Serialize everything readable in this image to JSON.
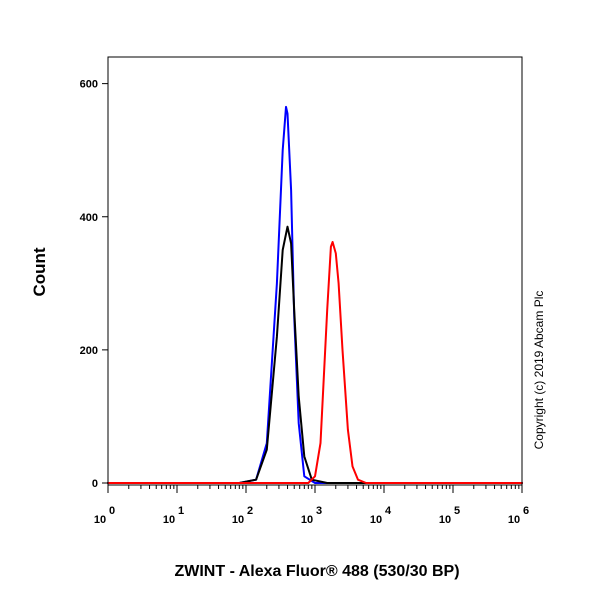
{
  "chart_data": {
    "type": "line",
    "xlabel": "ZWINT - Alexa Fluor® 488 (530/30 BP)",
    "ylabel": "Count",
    "x_scale": "log",
    "xlim": [
      1,
      1000000
    ],
    "ylim": [
      0,
      640
    ],
    "x_ticks": [
      {
        "base": "10",
        "exp": "0",
        "value": 1
      },
      {
        "base": "10",
        "exp": "1",
        "value": 10
      },
      {
        "base": "10",
        "exp": "2",
        "value": 100
      },
      {
        "base": "10",
        "exp": "3",
        "value": 1000
      },
      {
        "base": "10",
        "exp": "4",
        "value": 10000
      },
      {
        "base": "10",
        "exp": "5",
        "value": 100000
      },
      {
        "base": "10",
        "exp": "6",
        "value": 1000000
      }
    ],
    "y_ticks": [
      "0",
      "200",
      "400",
      "600"
    ],
    "y_tick_values": [
      0,
      200,
      400,
      600
    ],
    "grid": false,
    "annotation": "Copyright (c) 2019 Abcam Plc",
    "series": [
      {
        "color": "#0000ff",
        "x": [
          80,
          140,
          200,
          280,
          340,
          380,
          400,
          450,
          500,
          580,
          700,
          1000,
          1500
        ],
        "y": [
          0,
          5,
          60,
          300,
          500,
          565,
          555,
          440,
          250,
          90,
          10,
          0,
          0
        ]
      },
      {
        "color": "#000000",
        "x": [
          80,
          140,
          200,
          280,
          340,
          400,
          450,
          500,
          580,
          700,
          900,
          1500
        ],
        "y": [
          0,
          5,
          50,
          220,
          350,
          385,
          360,
          260,
          130,
          40,
          5,
          0
        ]
      },
      {
        "color": "#ff0000",
        "x": [
          800,
          1000,
          1200,
          1500,
          1700,
          1800,
          2000,
          2200,
          2500,
          3000,
          3500,
          4200,
          5500,
          8000
        ],
        "y": [
          0,
          10,
          60,
          260,
          355,
          362,
          345,
          300,
          200,
          80,
          25,
          5,
          0,
          0
        ]
      }
    ]
  }
}
